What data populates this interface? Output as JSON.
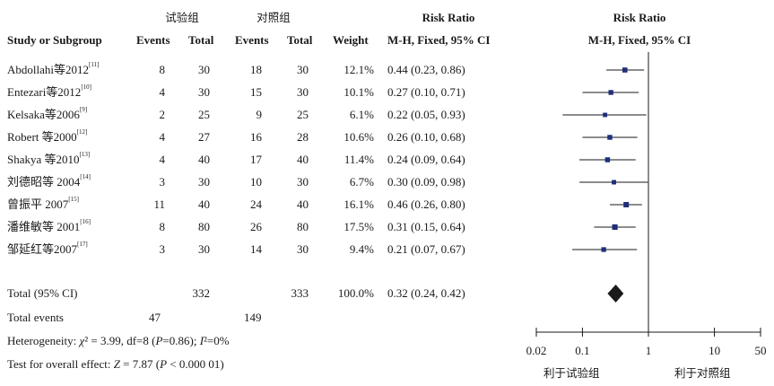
{
  "header": {
    "exp_group": "试验组",
    "ctrl_group": "对照组",
    "rr_title": "Risk Ratio",
    "rr_method": "M-H, Fixed, 95% CI",
    "plot_title": "Risk Ratio",
    "plot_method": "M-H, Fixed, 95% CI",
    "col_study": "Study or Subgroup",
    "col_events_exp": "Events",
    "col_total_exp": "Total",
    "col_events_ctrl": "Events",
    "col_total_ctrl": "Total",
    "col_weight": "Weight",
    "col_ci": "M-H, Fixed, 95% CI"
  },
  "studies": [
    {
      "name": "Abdollahi等2012",
      "ref": "[11]",
      "exp_events": "8",
      "exp_total": "30",
      "ctrl_events": "18",
      "ctrl_total": "30",
      "weight": "12.1%",
      "ci_text": "0.44 (0.23, 0.86)"
    },
    {
      "name": "Entezari等2012",
      "ref": "[10]",
      "exp_events": "4",
      "exp_total": "30",
      "ctrl_events": "15",
      "ctrl_total": "30",
      "weight": "10.1%",
      "ci_text": "0.27 (0.10, 0.71)"
    },
    {
      "name": "Kelsaka等2006",
      "ref": "[9]",
      "exp_events": "2",
      "exp_total": "25",
      "ctrl_events": "9",
      "ctrl_total": "25",
      "weight": "6.1%",
      "ci_text": "0.22 (0.05, 0.93)"
    },
    {
      "name": "Robert 等2000",
      "ref": "[12]",
      "exp_events": "4",
      "exp_total": "27",
      "ctrl_events": "16",
      "ctrl_total": "28",
      "weight": "10.6%",
      "ci_text": "0.26 (0.10, 0.68)"
    },
    {
      "name": "Shakya 等2010",
      "ref": "[13]",
      "exp_events": "4",
      "exp_total": "40",
      "ctrl_events": "17",
      "ctrl_total": "40",
      "weight": "11.4%",
      "ci_text": "0.24 (0.09, 0.64)"
    },
    {
      "name": "刘德昭等 2004",
      "ref": "[14]",
      "exp_events": "3",
      "exp_total": "30",
      "ctrl_events": "10",
      "ctrl_total": "30",
      "weight": "6.7%",
      "ci_text": "0.30 (0.09, 0.98)"
    },
    {
      "name": "曾振平 2007",
      "ref": "[15]",
      "exp_events": "11",
      "exp_total": "40",
      "ctrl_events": "24",
      "ctrl_total": "40",
      "weight": "16.1%",
      "ci_text": "0.46 (0.26, 0.80)"
    },
    {
      "name": "潘维敏等 2001",
      "ref": "[16]",
      "exp_events": "8",
      "exp_total": "80",
      "ctrl_events": "26",
      "ctrl_total": "80",
      "weight": "17.5%",
      "ci_text": "0.31 (0.15, 0.64)"
    },
    {
      "name": "邹延红等2007",
      "ref": "[17]",
      "exp_events": "3",
      "exp_total": "30",
      "ctrl_events": "14",
      "ctrl_total": "30",
      "weight": "9.4%",
      "ci_text": "0.21 (0.07, 0.67)"
    }
  ],
  "total": {
    "label": "Total (95% CI)",
    "exp_total": "332",
    "ctrl_total": "333",
    "weight": "100.0%",
    "ci_text": "0.32 (0.24, 0.42)"
  },
  "total_events": {
    "label": "Total events",
    "exp": "47",
    "ctrl": "149"
  },
  "heterogeneity": {
    "label": "Heterogeneity: ",
    "chi": "χ",
    "chi_rest": "² = 3.99, df=8 (",
    "p": "P",
    "p_rest": "=0.86); ",
    "i": "I",
    "i_rest": "²=0%"
  },
  "overall": {
    "label": "Test for overall effect: ",
    "z": "Z",
    "z_rest": " = 7.87 (",
    "p": "P",
    "p_rest": " < 0.000 01)"
  },
  "axis": {
    "ticks": [
      "0.02",
      "0.1",
      "1",
      "10",
      "50"
    ],
    "favours_exp": "利于试验组",
    "favours_ctrl": "利于对照组"
  },
  "chart_data": {
    "type": "forest",
    "scale": "log",
    "xlim": [
      0.02,
      50
    ],
    "xticks": [
      0.02,
      0.1,
      1,
      10,
      50
    ],
    "reference_line": 1,
    "studies": [
      {
        "rr": 0.44,
        "lo": 0.23,
        "hi": 0.86,
        "weight": 12.1
      },
      {
        "rr": 0.27,
        "lo": 0.1,
        "hi": 0.71,
        "weight": 10.1
      },
      {
        "rr": 0.22,
        "lo": 0.05,
        "hi": 0.93,
        "weight": 6.1
      },
      {
        "rr": 0.26,
        "lo": 0.1,
        "hi": 0.68,
        "weight": 10.6
      },
      {
        "rr": 0.24,
        "lo": 0.09,
        "hi": 0.64,
        "weight": 11.4
      },
      {
        "rr": 0.3,
        "lo": 0.09,
        "hi": 0.98,
        "weight": 6.7
      },
      {
        "rr": 0.46,
        "lo": 0.26,
        "hi": 0.8,
        "weight": 16.1
      },
      {
        "rr": 0.31,
        "lo": 0.15,
        "hi": 0.64,
        "weight": 17.5
      },
      {
        "rr": 0.21,
        "lo": 0.07,
        "hi": 0.67,
        "weight": 9.4
      }
    ],
    "pooled": {
      "rr": 0.32,
      "lo": 0.24,
      "hi": 0.42
    },
    "colors": {
      "square": "#1f2f7a",
      "diamond": "#1a1a1a",
      "line": "#1a1a1a"
    }
  }
}
